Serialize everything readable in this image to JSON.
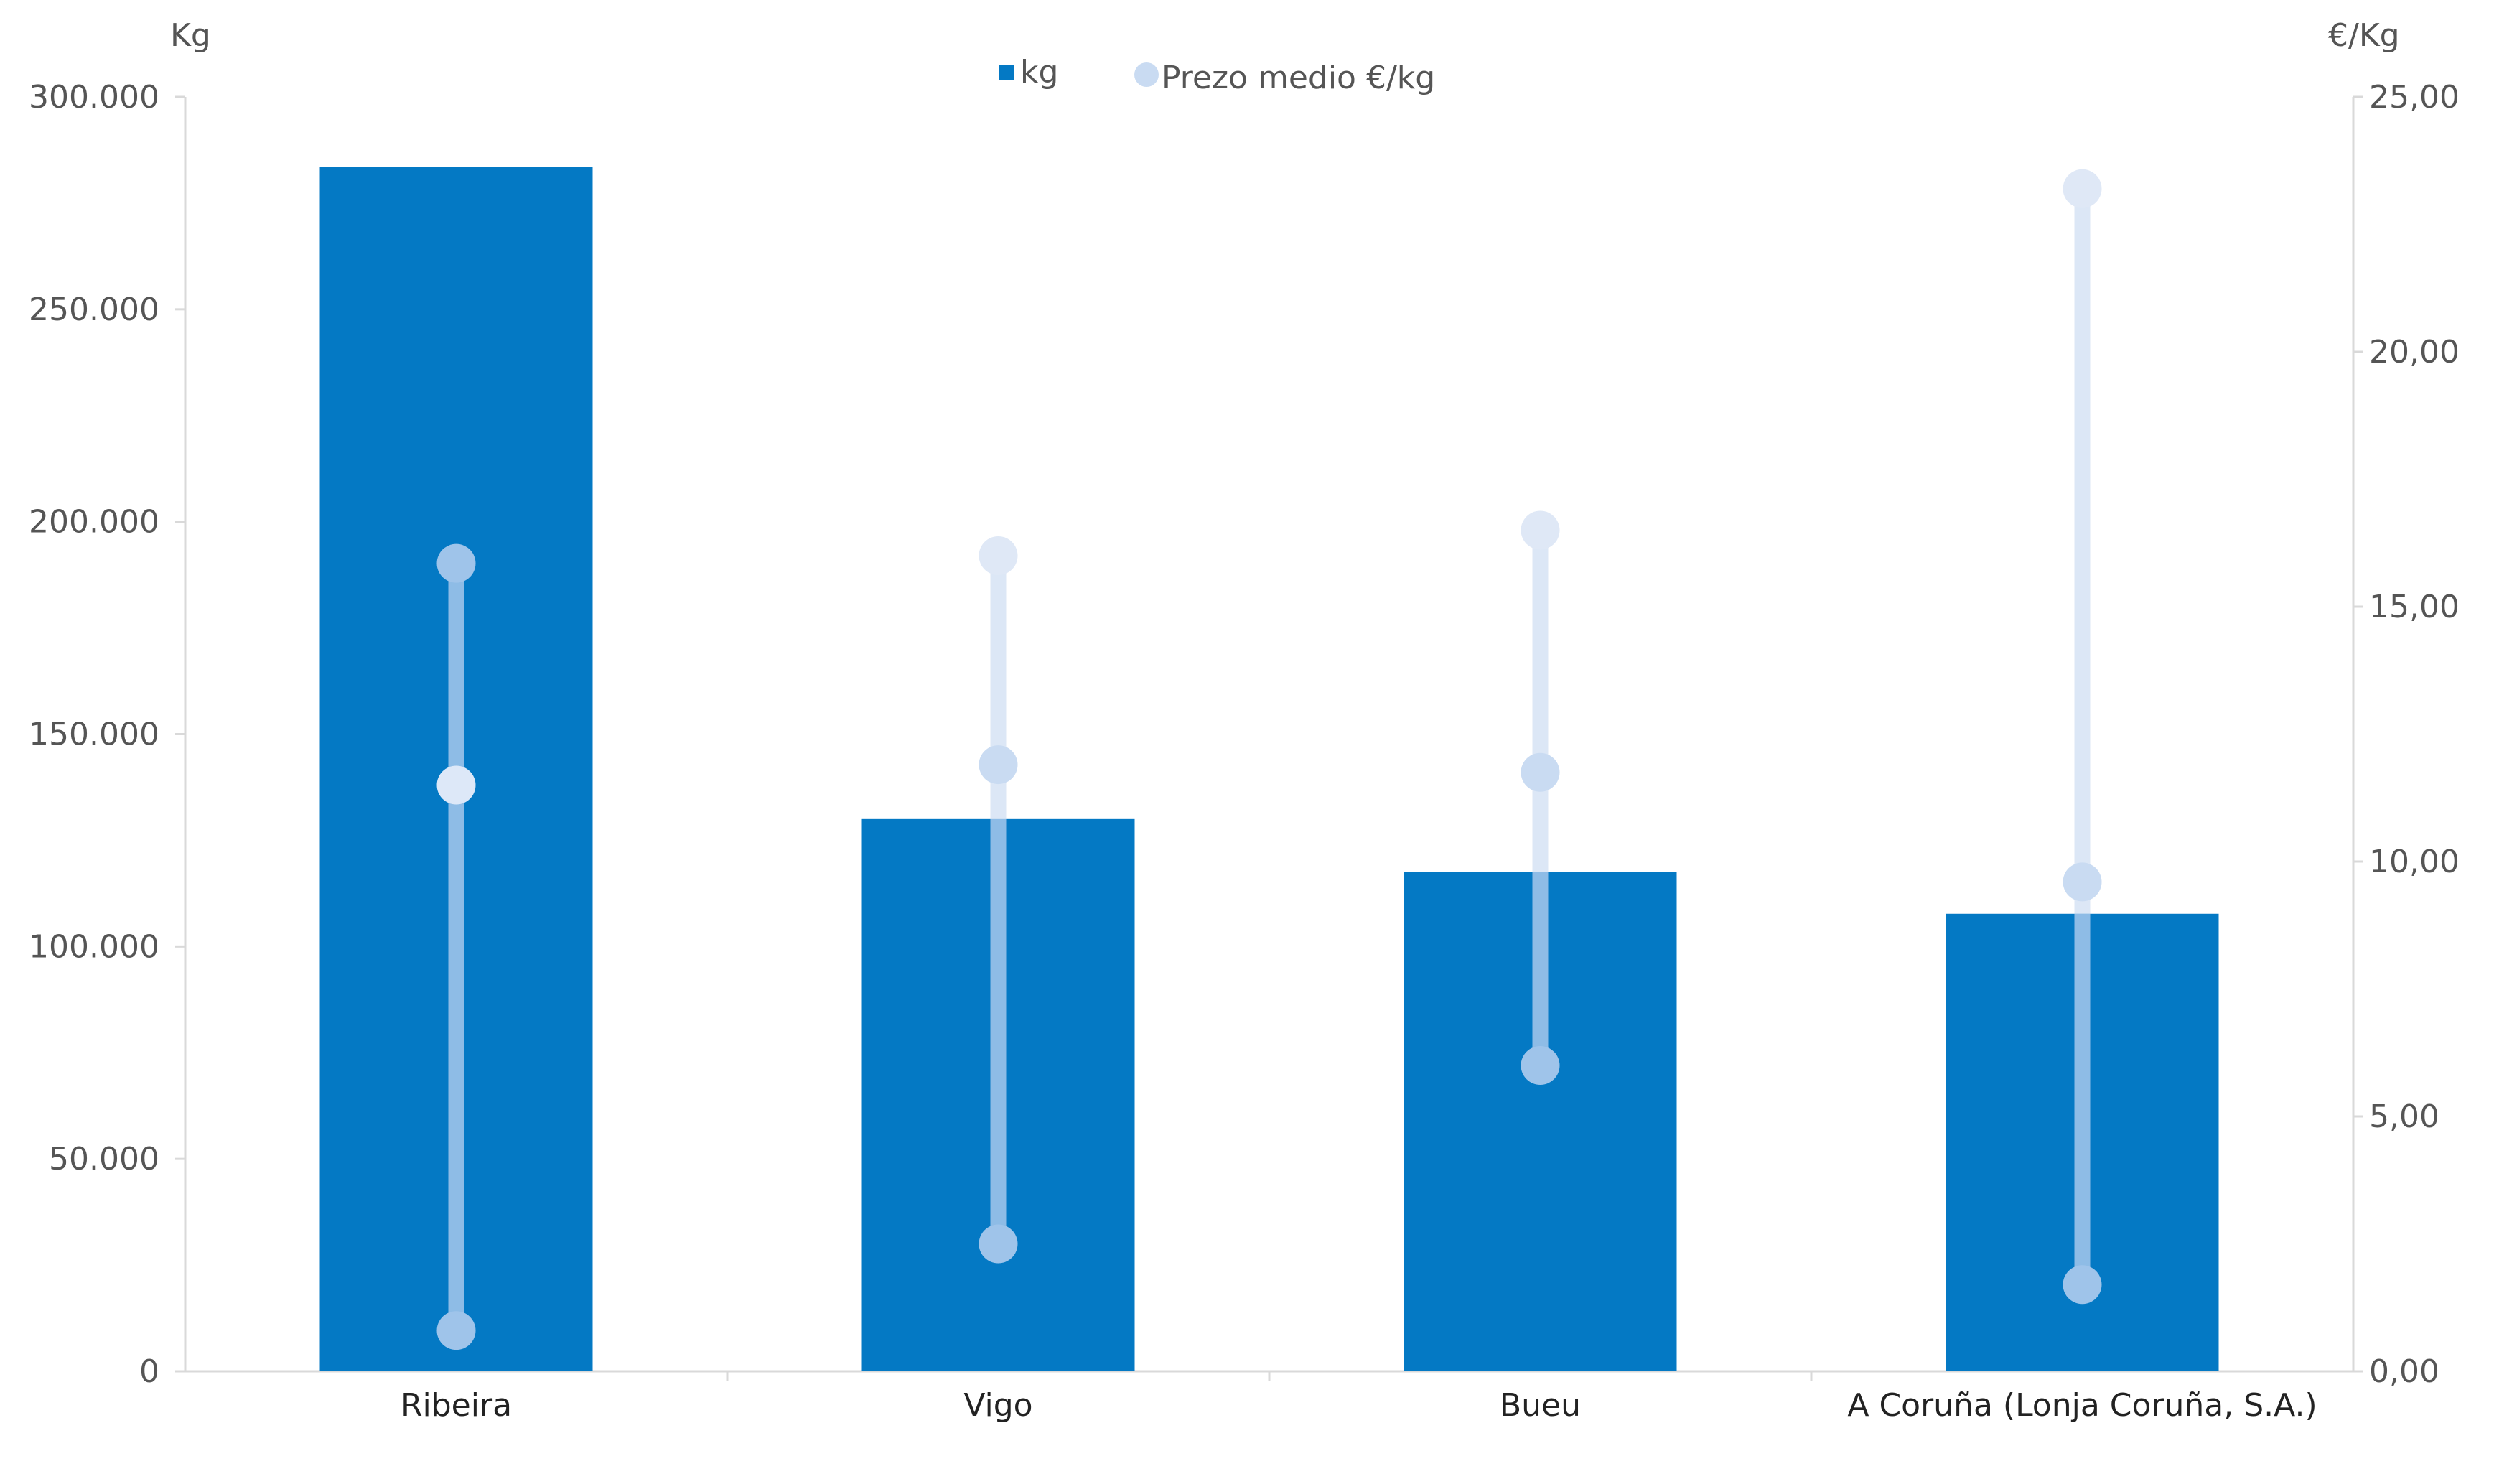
{
  "chart_data": {
    "type": "bar",
    "categories": [
      "Ribeira",
      "Vigo",
      "Bueu",
      "A Coruña (Lonja Coruña, S.A.)"
    ],
    "series": [
      {
        "name": "kg",
        "axis": "left",
        "values": [
          283500,
          130000,
          117500,
          107700
        ]
      }
    ],
    "price_ranges": {
      "name": "Prezo medio €/kg",
      "axis": "right",
      "min": [
        0.8,
        2.5,
        6.0,
        1.7
      ],
      "avg": [
        11.5,
        11.9,
        11.75,
        9.6
      ],
      "max": [
        15.85,
        16.0,
        16.5,
        23.2
      ]
    },
    "left_axis": {
      "title": "Kg",
      "ylim": [
        0,
        300000
      ],
      "ticks": [
        "0",
        "50.000",
        "100.000",
        "150.000",
        "200.000",
        "250.000",
        "300.000"
      ]
    },
    "right_axis": {
      "title": "€/Kg",
      "ylim": [
        0,
        25
      ],
      "ticks": [
        "0,00",
        "5,00",
        "10,00",
        "15,00",
        "20,00",
        "25,00"
      ]
    },
    "legend": {
      "position": "top-center",
      "items": [
        "kg",
        "Prezo medio €/kg"
      ]
    },
    "colors": {
      "bar": "#0479C4",
      "line_on_bar": "#8EBCE6",
      "line_off_bar": "#DCE7F6",
      "marker_on_bar": "#9FC4EA",
      "marker_avg_on_bar": "#DDE8F8",
      "marker_off_bar": "#C9DBF2",
      "marker_max_off_bar": "#DFE8F6",
      "axis": "#D9D9D9"
    }
  }
}
